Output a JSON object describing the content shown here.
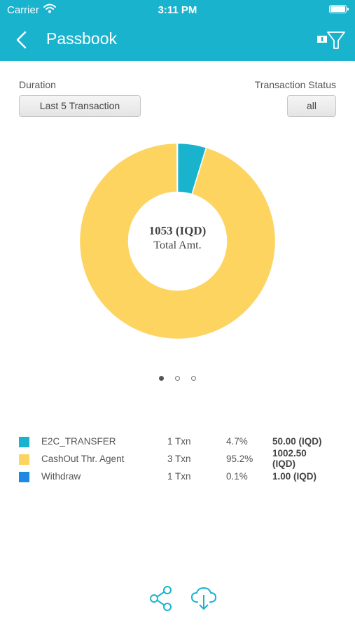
{
  "status_bar": {
    "carrier": "Carrier",
    "time": "3:11 PM"
  },
  "header": {
    "title": "Passbook",
    "background": "#1ab3ce"
  },
  "filters": {
    "duration_label": "Duration",
    "duration_value": "Last 5 Transaction",
    "status_label": "Transaction Status",
    "status_value": "all"
  },
  "chart_data": {
    "type": "pie",
    "total_amount": "1053 (IQD)",
    "total_caption": "Total Amt.",
    "series": [
      {
        "name": "E2C_TRANSFER",
        "value": 50.0,
        "percent": 4.7,
        "color": "#1ab3ce"
      },
      {
        "name": "CashOut Thr. Agent",
        "value": 1002.5,
        "percent": 95.2,
        "color": "#fdd460"
      },
      {
        "name": "Withdraw",
        "value": 1.0,
        "percent": 0.1,
        "color": "#1e88e5"
      }
    ]
  },
  "pagination": {
    "pages": 3,
    "active": 0
  },
  "legend": [
    {
      "name": "E2C_TRANSFER",
      "txn": "1 Txn",
      "pct": "4.7%",
      "amount": "50.00 (IQD)",
      "color": "#1ab3ce"
    },
    {
      "name": "CashOut Thr. Agent",
      "txn": "3 Txn",
      "pct": "95.2%",
      "amount": "1002.50 (IQD)",
      "color": "#fdd460"
    },
    {
      "name": "Withdraw",
      "txn": "1 Txn",
      "pct": "0.1%",
      "amount": "1.00 (IQD)",
      "color": "#1e88e5"
    }
  ],
  "actions": {
    "share_icon": "share-icon",
    "download_icon": "cloud-download-icon"
  }
}
